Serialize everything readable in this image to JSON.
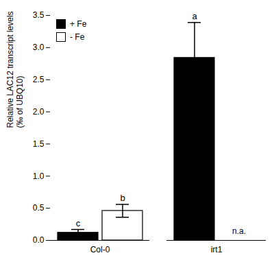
{
  "chart_data": {
    "type": "bar",
    "ylabel": "Relative LAC12 transcript levels\n(‰ of UBQ10)",
    "categories": [
      "Col-0",
      "irt1"
    ],
    "series": [
      {
        "name": "+ Fe",
        "color": "#000000",
        "values": [
          0.12,
          2.84
        ],
        "errors": [
          0.05,
          0.55
        ],
        "significance_labels": [
          "c",
          "a"
        ]
      },
      {
        "name": "- Fe",
        "color": "#ffffff",
        "values": [
          0.46,
          null
        ],
        "errors": [
          0.1,
          null
        ],
        "significance_labels": [
          "b",
          null
        ]
      }
    ],
    "annotations": [
      "n.a."
    ],
    "ylim": [
      0,
      3.5
    ],
    "yticks": [
      {
        "value": 0,
        "label": "0.0"
      },
      0.5,
      {
        "value": 1,
        "label": "1.0"
      },
      1.5,
      {
        "value": 2,
        "label": "2.0"
      },
      2.5,
      {
        "value": 3,
        "label": "3.0"
      },
      3.5
    ],
    "legend": "upper left",
    "grid": false
  }
}
